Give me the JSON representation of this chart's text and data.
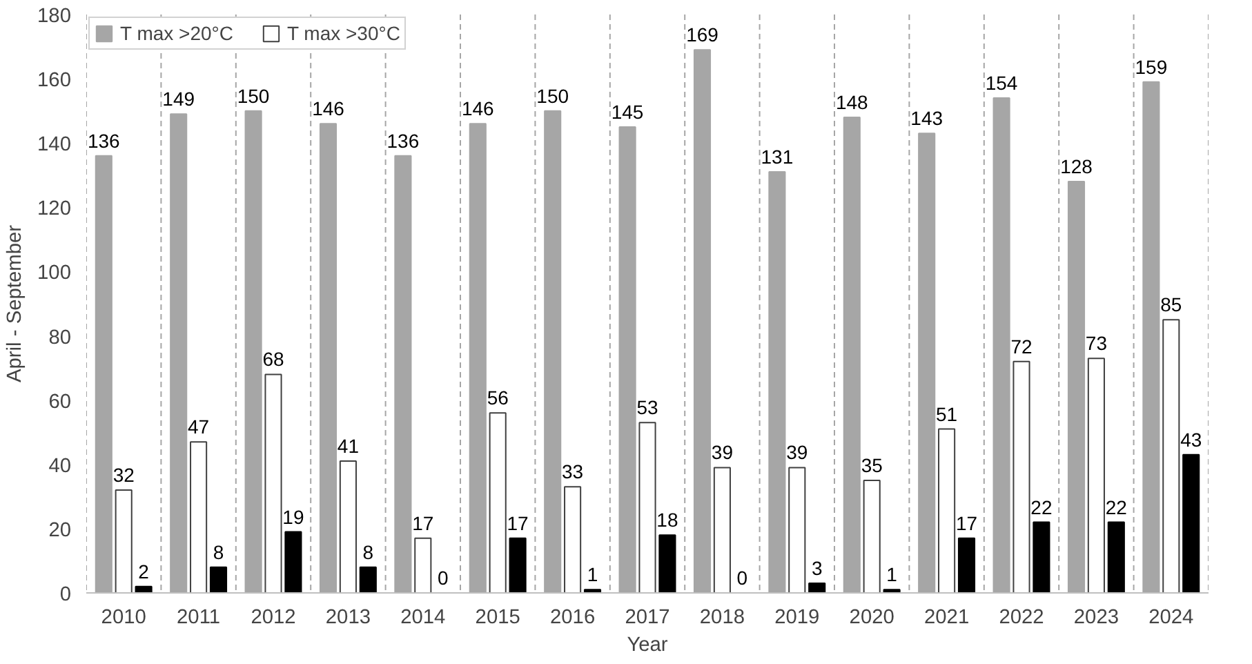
{
  "chart_data": {
    "type": "bar",
    "xlabel": "Year",
    "ylabel": "April - September",
    "categories": [
      "2010",
      "2011",
      "2012",
      "2013",
      "2014",
      "2015",
      "2016",
      "2017",
      "2018",
      "2019",
      "2020",
      "2021",
      "2022",
      "2023",
      "2024"
    ],
    "series": [
      {
        "name": "T max >20°C",
        "color": "#a6a6a6",
        "values": [
          136,
          149,
          150,
          146,
          136,
          146,
          150,
          145,
          169,
          131,
          148,
          143,
          154,
          128,
          159
        ]
      },
      {
        "name": "T max >30°C",
        "color": "#ffffff",
        "values": [
          32,
          47,
          68,
          41,
          17,
          56,
          33,
          53,
          39,
          39,
          35,
          51,
          72,
          73,
          85
        ]
      },
      {
        "color": "#000000",
        "values": [
          2,
          8,
          19,
          8,
          0,
          17,
          1,
          18,
          0,
          3,
          1,
          17,
          22,
          22,
          43
        ]
      }
    ],
    "ylim": [
      0,
      180
    ],
    "yticks": [
      0,
      20,
      40,
      60,
      80,
      100,
      120,
      140,
      160,
      180
    ],
    "grid": "x",
    "legend": "top left",
    "data_labels": true
  }
}
